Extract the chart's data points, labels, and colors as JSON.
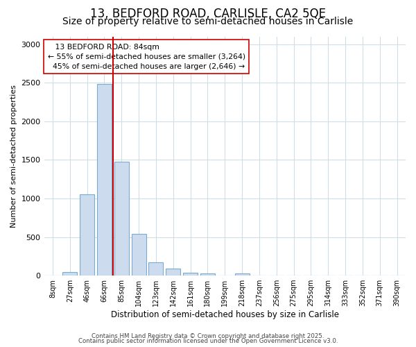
{
  "title1": "13, BEDFORD ROAD, CARLISLE, CA2 5QE",
  "title2": "Size of property relative to semi-detached houses in Carlisle",
  "xlabel": "Distribution of semi-detached houses by size in Carlisle",
  "ylabel": "Number of semi-detached properties",
  "categories": [
    "8sqm",
    "27sqm",
    "46sqm",
    "66sqm",
    "85sqm",
    "104sqm",
    "123sqm",
    "142sqm",
    "161sqm",
    "180sqm",
    "199sqm",
    "218sqm",
    "237sqm",
    "256sqm",
    "275sqm",
    "295sqm",
    "314sqm",
    "333sqm",
    "352sqm",
    "371sqm",
    "390sqm"
  ],
  "values": [
    0,
    50,
    1050,
    2480,
    1480,
    540,
    170,
    90,
    40,
    30,
    0,
    25,
    0,
    0,
    0,
    0,
    0,
    0,
    0,
    0,
    0
  ],
  "bar_color": "#ccdcee",
  "bar_edgecolor": "#7aaace",
  "property_label": "13 BEDFORD ROAD: 84sqm",
  "smaller_pct": "55% of semi-detached houses are smaller (3,264)",
  "larger_pct": "45% of semi-detached houses are larger (2,646)",
  "line_color": "#cc0000",
  "annotation_box_edgecolor": "#cc0000",
  "ylim": [
    0,
    3100
  ],
  "yticks": [
    0,
    500,
    1000,
    1500,
    2000,
    2500,
    3000
  ],
  "footer1": "Contains HM Land Registry data © Crown copyright and database right 2025.",
  "footer2": "Contains public sector information licensed under the Open Government Licence v3.0.",
  "bg_color": "#ffffff",
  "grid_color": "#d0dce8",
  "title_fontsize": 12,
  "subtitle_fontsize": 10
}
